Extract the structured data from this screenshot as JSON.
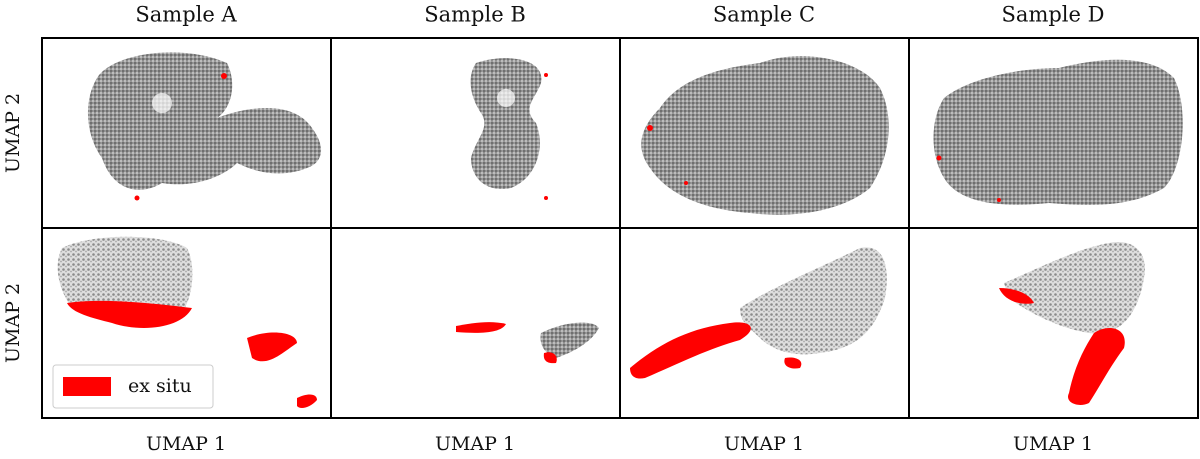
{
  "columns": [
    {
      "title": "Sample A",
      "x_label": "UMAP 1"
    },
    {
      "title": "Sample B",
      "x_label": "UMAP 1"
    },
    {
      "title": "Sample C",
      "x_label": "UMAP 1"
    },
    {
      "title": "Sample D",
      "x_label": "UMAP 1"
    }
  ],
  "rows": [
    {
      "y_label": "UMAP 2"
    },
    {
      "y_label": "UMAP 2"
    }
  ],
  "legend": {
    "label": "ex situ",
    "color": "#ff0000"
  }
}
